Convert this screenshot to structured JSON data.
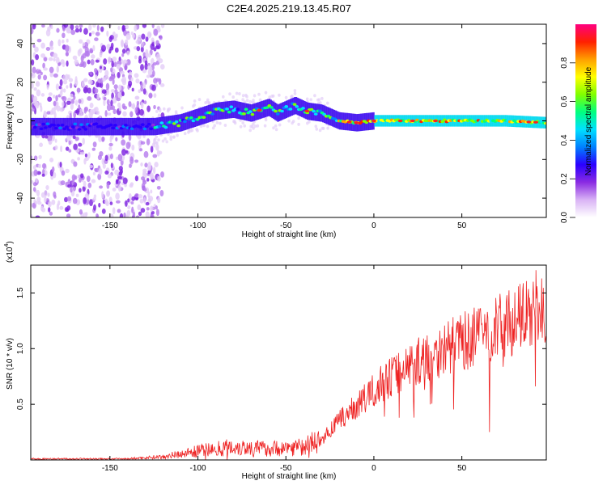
{
  "title": "C2E4.2025.219.13.45.R07",
  "spectrogram": {
    "type": "heatmap",
    "xlabel": "Height of straight line (km)",
    "ylabel": "Frequency (Hz)",
    "xlim": [
      -195,
      98
    ],
    "ylim": [
      -50,
      50
    ],
    "xticks": [
      -150,
      -100,
      -50,
      0,
      50
    ],
    "yticks": [
      -40,
      -20,
      0,
      20,
      40
    ],
    "colorbar": {
      "label": "Normalized spectral amplitude",
      "range": [
        0,
        1
      ],
      "ticks": [
        "0.0",
        "0.2",
        "0.4",
        "0.6",
        "0.8"
      ],
      "colors": [
        "#ffffff",
        "#d9b3f5",
        "#8a2be2",
        "#2a00ff",
        "#0080ff",
        "#00e0ff",
        "#00ff80",
        "#80ff00",
        "#ffff00",
        "#ffa000",
        "#ff2000",
        "#ff0080"
      ]
    },
    "ridge": [
      {
        "x": -195,
        "f": -3
      },
      {
        "x": -150,
        "f": -3
      },
      {
        "x": -125,
        "f": -3
      },
      {
        "x": -110,
        "f": -1
      },
      {
        "x": -100,
        "f": 2
      },
      {
        "x": -90,
        "f": 5
      },
      {
        "x": -80,
        "f": 6
      },
      {
        "x": -70,
        "f": 4
      },
      {
        "x": -60,
        "f": 7
      },
      {
        "x": -55,
        "f": 4
      },
      {
        "x": -45,
        "f": 8
      },
      {
        "x": -38,
        "f": 5
      },
      {
        "x": -30,
        "f": 4
      },
      {
        "x": -20,
        "f": 0
      },
      {
        "x": -10,
        "f": -1
      },
      {
        "x": 0,
        "f": 0
      },
      {
        "x": 20,
        "f": 0
      },
      {
        "x": 50,
        "f": 0
      },
      {
        "x": 75,
        "f": 0
      },
      {
        "x": 98,
        "f": -1
      }
    ]
  },
  "snr_chart": {
    "type": "line",
    "xlabel": "Height of straight line (km)",
    "ylabel": "SNR (10 * v/v)",
    "multiplier": "(x10",
    "multiplier_exp": "4",
    "xlim": [
      -195,
      98
    ],
    "ylim": [
      0,
      1.75
    ],
    "xticks": [
      -150,
      -100,
      -50,
      0,
      50
    ],
    "yticks": [
      "0.5",
      "1.0",
      "1.5"
    ],
    "color": "#ee2222",
    "envelope": [
      {
        "x": -195,
        "y": 0.01
      },
      {
        "x": -140,
        "y": 0.01
      },
      {
        "x": -120,
        "y": 0.03
      },
      {
        "x": -100,
        "y": 0.08
      },
      {
        "x": -80,
        "y": 0.12
      },
      {
        "x": -60,
        "y": 0.1
      },
      {
        "x": -40,
        "y": 0.12
      },
      {
        "x": -30,
        "y": 0.18
      },
      {
        "x": -20,
        "y": 0.35
      },
      {
        "x": -5,
        "y": 0.55
      },
      {
        "x": 5,
        "y": 0.7
      },
      {
        "x": 20,
        "y": 0.85
      },
      {
        "x": 40,
        "y": 1.0
      },
      {
        "x": 60,
        "y": 1.12
      },
      {
        "x": 80,
        "y": 1.25
      },
      {
        "x": 98,
        "y": 1.35
      }
    ]
  }
}
